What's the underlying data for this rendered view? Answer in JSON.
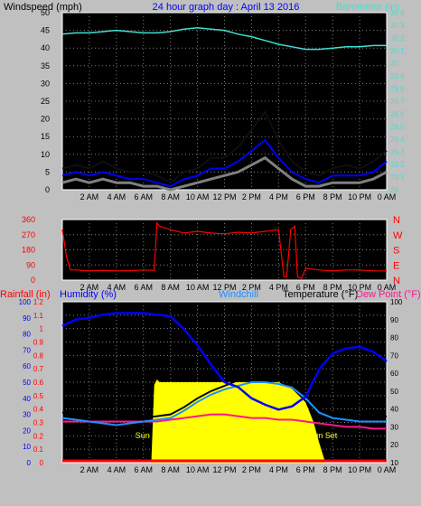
{
  "colors": {
    "background": "#c0c0c0",
    "plot_bg": "#000000",
    "title": "#0000ff",
    "barometer": "#40e0d0",
    "wind_gust": "#000000",
    "wind_avg": "#808080",
    "wind_speed_avg": "#0000ff",
    "direction": "#ff0000",
    "rainfall": "#ff0000",
    "humidity": "#0000ff",
    "windchill": "#1e90ff",
    "temperature": "#000000",
    "dew_point": "#ff1493",
    "solar": "#ffff00",
    "sun_label": "#ffff00"
  },
  "chart_data": [
    {
      "type": "line",
      "title": "24 hour graph day : April 13 2016",
      "ylabel": "Windspeed (mph)",
      "y2label": "Barometer (in)",
      "ylim": [
        0,
        50
      ],
      "y2lim": [
        29.0,
        30.4
      ],
      "yticks": [
        "0",
        "5",
        "10",
        "15",
        "20",
        "25",
        "30",
        "35",
        "40",
        "45",
        "50"
      ],
      "y2ticks": [
        "29",
        "29.1",
        "29.2",
        "29.3",
        "29.4",
        "29.5",
        "29.6",
        "29.7",
        "29.8",
        "29.9",
        "30",
        "30.1",
        "30.2",
        "30.3",
        "30.4"
      ],
      "xticks": [
        "2 AM",
        "4 AM",
        "6 AM",
        "8 AM",
        "10 AM",
        "12 PM",
        "2 PM",
        "4 PM",
        "6 PM",
        "8 PM",
        "10 PM",
        "0 AM"
      ],
      "grid": true,
      "series": [
        {
          "name": "Barometer (in)",
          "axis": "right",
          "x": [
            0,
            1,
            2,
            3,
            4,
            5,
            6,
            7,
            8,
            9,
            10,
            11,
            12,
            13,
            14,
            15,
            16,
            17,
            18,
            19,
            20,
            21,
            22,
            23,
            24
          ],
          "values": [
            30.23,
            30.24,
            30.24,
            30.25,
            30.26,
            30.25,
            30.24,
            30.24,
            30.25,
            30.27,
            30.28,
            30.27,
            30.26,
            30.23,
            30.21,
            30.18,
            30.15,
            30.13,
            30.11,
            30.11,
            30.12,
            30.13,
            30.13,
            30.14,
            30.14
          ]
        },
        {
          "name": "Wind gust",
          "axis": "left",
          "x": [
            0,
            1,
            2,
            3,
            4,
            5,
            6,
            7,
            8,
            9,
            10,
            11,
            12,
            13,
            14,
            15,
            16,
            17,
            18,
            19,
            20,
            21,
            22,
            23,
            24
          ],
          "values": [
            6,
            7,
            6,
            8,
            6,
            5,
            5,
            4,
            2,
            5,
            6,
            9,
            9,
            12,
            17,
            22,
            14,
            8,
            5,
            4,
            6,
            7,
            6,
            8,
            11
          ]
        },
        {
          "name": "Wind average",
          "axis": "left",
          "x": [
            0,
            1,
            2,
            3,
            4,
            5,
            6,
            7,
            8,
            9,
            10,
            11,
            12,
            13,
            14,
            15,
            16,
            17,
            18,
            19,
            20,
            21,
            22,
            23,
            24
          ],
          "values": [
            2,
            3,
            2,
            3,
            2,
            2,
            1,
            1,
            0,
            1,
            2,
            3,
            4,
            5,
            7,
            9,
            6,
            3,
            1,
            1,
            2,
            2,
            2,
            3,
            5
          ]
        },
        {
          "name": "Wind speed average",
          "axis": "left",
          "x": [
            0,
            1,
            2,
            3,
            4,
            5,
            6,
            7,
            8,
            9,
            10,
            11,
            12,
            13,
            14,
            15,
            16,
            17,
            18,
            19,
            20,
            21,
            22,
            23,
            24
          ],
          "values": [
            4,
            5,
            4,
            5,
            4,
            3,
            3,
            2,
            1,
            3,
            4,
            6,
            6,
            8,
            11,
            14,
            9,
            5,
            3,
            2,
            4,
            4,
            4,
            5,
            8
          ]
        }
      ]
    },
    {
      "type": "line",
      "ylabel": "Direction",
      "ylim": [
        0,
        360
      ],
      "yticks": [
        "0",
        "90",
        "180",
        "270",
        "360"
      ],
      "y2ticks": [
        "N",
        "E",
        "S",
        "W",
        "N"
      ],
      "xticks": [
        "2 AM",
        "4 AM",
        "6 AM",
        "8 AM",
        "10 AM",
        "12 PM",
        "2 PM",
        "4 PM",
        "6 PM",
        "8 PM",
        "10 PM",
        "0 AM"
      ],
      "grid": true,
      "series": [
        {
          "name": "Wind direction",
          "x": [
            0,
            0.3,
            0.6,
            1,
            2,
            3,
            4,
            5,
            6,
            6.8,
            7.0,
            7.2,
            8,
            9,
            10,
            11,
            12,
            13,
            14,
            15,
            16,
            16.4,
            16.6,
            16.9,
            17.2,
            17.4,
            17.7,
            18,
            19,
            20,
            21,
            22,
            23,
            24
          ],
          "values": [
            300,
            140,
            60,
            60,
            55,
            58,
            55,
            56,
            60,
            58,
            340,
            320,
            300,
            280,
            290,
            280,
            275,
            285,
            280,
            290,
            300,
            20,
            20,
            300,
            320,
            20,
            10,
            70,
            60,
            55,
            60,
            60,
            55,
            55
          ]
        }
      ]
    },
    {
      "type": "line",
      "ylabel": "Rainfall (in)",
      "y2label": "Humidity (%)",
      "labels": [
        "Windchill",
        "Temperature (°F)",
        "Dew Point (°F)"
      ],
      "ylim": [
        0,
        1.2
      ],
      "y2lim": [
        0,
        100
      ],
      "y3lim": [
        10,
        100
      ],
      "yticks": [
        "0",
        "0.1",
        "0.2",
        "0.3",
        "0.4",
        "0.5",
        "0.6",
        "0.7",
        "0.8",
        "0.9",
        "1",
        "1.1",
        "1.2"
      ],
      "y2ticks": [
        "0",
        "10",
        "20",
        "30",
        "40",
        "50",
        "60",
        "70",
        "80",
        "90",
        "100"
      ],
      "y3ticks": [
        "10",
        "20",
        "30",
        "40",
        "50",
        "60",
        "70",
        "80",
        "90",
        "100"
      ],
      "xticks": [
        "2 AM",
        "4 AM",
        "6 AM",
        "8 AM",
        "10 AM",
        "12 PM",
        "2 PM",
        "4 PM",
        "6 PM",
        "8 PM",
        "10 PM",
        "0 AM"
      ],
      "annotations": [
        "Sun Rise",
        "Sun Set"
      ],
      "sunrise_hour": 6.6,
      "sunset_hour": 19.4,
      "grid": true,
      "series": [
        {
          "name": "Humidity (%)",
          "axis": "humidity",
          "x": [
            0,
            1,
            2,
            3,
            4,
            5,
            6,
            7,
            8,
            9,
            10,
            11,
            12,
            13,
            14,
            15,
            16,
            17,
            18,
            19,
            20,
            21,
            22,
            23,
            24
          ],
          "values": [
            85,
            89,
            90,
            92,
            93,
            93,
            93,
            92,
            91,
            83,
            73,
            61,
            50,
            47,
            40,
            36,
            33,
            35,
            41,
            58,
            68,
            71,
            72,
            69,
            63
          ]
        },
        {
          "name": "Temperature (°F)",
          "axis": "temp",
          "x": [
            0,
            1,
            2,
            3,
            4,
            5,
            6,
            7,
            8,
            9,
            10,
            11,
            12,
            13,
            14,
            15,
            16,
            17,
            18,
            19,
            20,
            21,
            22,
            23,
            24
          ],
          "values": [
            38,
            37,
            36,
            35,
            34,
            34,
            35,
            36,
            37,
            41,
            46,
            50,
            53,
            56,
            58,
            58,
            57,
            55,
            48,
            40,
            37,
            36,
            35,
            35,
            36
          ]
        },
        {
          "name": "Windchill",
          "axis": "temp",
          "x": [
            0,
            1,
            2,
            3,
            4,
            5,
            6,
            7,
            8,
            9,
            10,
            11,
            12,
            13,
            14,
            15,
            16,
            17,
            18,
            19,
            20,
            21,
            22,
            23,
            24
          ],
          "values": [
            35,
            34,
            33,
            32,
            31,
            32,
            33,
            34,
            35,
            39,
            44,
            48,
            51,
            53,
            55,
            55,
            54,
            52,
            46,
            38,
            35,
            34,
            33,
            33,
            33
          ]
        },
        {
          "name": "Dew Point (°F)",
          "axis": "temp",
          "x": [
            0,
            1,
            2,
            3,
            4,
            5,
            6,
            7,
            8,
            9,
            10,
            11,
            12,
            13,
            14,
            15,
            16,
            17,
            18,
            19,
            20,
            21,
            22,
            23,
            24
          ],
          "values": [
            33,
            33,
            33,
            33,
            33,
            33,
            33,
            33,
            34,
            35,
            36,
            37,
            37,
            36,
            35,
            35,
            34,
            34,
            33,
            32,
            31,
            30,
            30,
            29,
            29
          ]
        },
        {
          "name": "Solar",
          "axis": "rain",
          "x": [
            6.6,
            6.8,
            7.0,
            7.2,
            8,
            9,
            10,
            11,
            12,
            13,
            14,
            15,
            16,
            17,
            18,
            18.6,
            19.0,
            19.4
          ],
          "values": [
            0.04,
            0.58,
            0.62,
            0.6,
            0.6,
            0.6,
            0.6,
            0.6,
            0.6,
            0.6,
            0.6,
            0.6,
            0.6,
            0.55,
            0.45,
            0.3,
            0.15,
            0.02
          ]
        },
        {
          "name": "Rainfall (in)",
          "axis": "rain",
          "x": [
            0,
            24
          ],
          "values": [
            0,
            0
          ]
        }
      ]
    }
  ]
}
